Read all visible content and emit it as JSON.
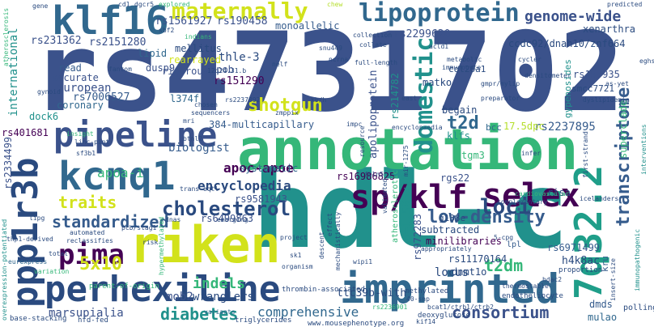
{
  "palette": {
    "dark_purple": "#440154",
    "indigo": "#3b528b",
    "navy": "#2a4a7f",
    "blue": "#31688e",
    "slate": "#365c8d",
    "teal": "#21918c",
    "teal_light": "#1f9e89",
    "green": "#35b779",
    "lime": "#6ece58",
    "yellow_green": "#b5de2b",
    "yellow": "#d2e21b"
  },
  "words": [
    "rs4731702",
    "hdl-c",
    "annotation",
    "perhexiline",
    "riken",
    "imprinted",
    "pipeline",
    "kcnq1",
    "klf16",
    "ppp1r3b",
    "selex",
    "7q32.2",
    "sp/klf",
    "lipoprotein",
    "maternally",
    "genome-wide",
    "pima",
    "domestic",
    "apolipoprotein",
    "cholesterol",
    "traits",
    "5x10",
    "low-density",
    "consortium",
    "diabetes",
    "shotgun",
    "loci",
    "t2d",
    "t2dm",
    "transcriptome",
    "standardized",
    "indels",
    "encyclopedia",
    "locus",
    "european",
    "international",
    "biologist",
    "apoa-i",
    "apoc-apoe",
    "comprehensive",
    "marsupialia",
    "wranglers",
    "mob2",
    "rs2237895",
    "rs231362",
    "rs2151280",
    "rs1561927",
    "rs190458",
    "rs2299620",
    "rs157935",
    "rs7006527",
    "rs151290",
    "rs214782",
    "rs401681",
    "rs2334499",
    "rs16986825",
    "rs9581943",
    "rs6499863",
    "rs972283",
    "rs11170164",
    "rs6971499",
    "p=1.503x10",
    "384-multicapillary",
    "xenarthra",
    "ccdc92/dnah10/znf664",
    "monoallelic",
    "smcc7721",
    "superclade",
    "ttc39b-with",
    "h4k8ac",
    "dmds",
    "mulao",
    "kru",
    "mellitus",
    "rearrayed",
    "rigorous",
    "thle-3",
    "apob",
    "dusp9",
    "read",
    "accurate",
    "coronary",
    "matko",
    "begain",
    "subtracted",
    "minilibraries",
    "rgs22",
    "dnmt1o",
    "klfs",
    "bcc",
    "17.5dpc",
    "tgm3",
    "g138e",
    "l374f",
    "dock6",
    "lipid",
    "systematic",
    "atherosclerotic",
    "risa",
    "col26a1",
    "gypenosides",
    "lpl",
    "polling",
    "overexpression-potentiated",
    "parent-of-origin",
    "thermostable",
    "endotheliocyte",
    "hdac2",
    "proportion",
    "deoxyglucose",
    "bcat1/ctrb1/ctrb2",
    "40-snp",
    "triglycerides",
    "kif14",
    "www.mousephenotype.org",
    "base-stacking",
    "hfd-fed",
    "variants",
    "thrombin-associated",
    "descent",
    "effect",
    "mechanistically",
    "methylated",
    "insert-size",
    "immunopathogenic",
    "organism",
    "wipi1",
    "sk1",
    "project",
    "risk",
    "emerging",
    "dnas",
    "automated",
    "reclassifies",
    "total",
    "eurexpress",
    "linc-pint",
    "insight",
    "sf3b1",
    "pcb/stag1",
    "thp1-derived",
    "lipg",
    "atherosclerosis",
    "sbf2",
    "indians",
    "gene",
    "cd1",
    "dgcr5",
    "explored",
    "collection",
    "collate",
    "snu449",
    "kb/h",
    "12q24.31.b",
    "ncrna",
    "full-length",
    "metabolic",
    "immunocyte",
    "gmpr/mylip",
    "cycler",
    "densitometer",
    "as-yet",
    "dyslipidemia",
    "eghs",
    "predicted",
    "east",
    "preparator",
    "chosen",
    "sequencers",
    "zmppix",
    "impc",
    "encyclopaedia",
    "trans-eqtl",
    "btnl2",
    "fbln5",
    "mir-1275",
    "resource",
    "complementary",
    "infer",
    "icelanders",
    "first-strand",
    "interventions",
    "cardiovascular",
    "validated",
    "appropriately",
    "nelf",
    "fantom",
    "gynoid",
    "mri",
    "5-cpg",
    "variation",
    "hypermethylated",
    "chew",
    "acld1",
    "rs2237892",
    "rs2236901"
  ]
}
